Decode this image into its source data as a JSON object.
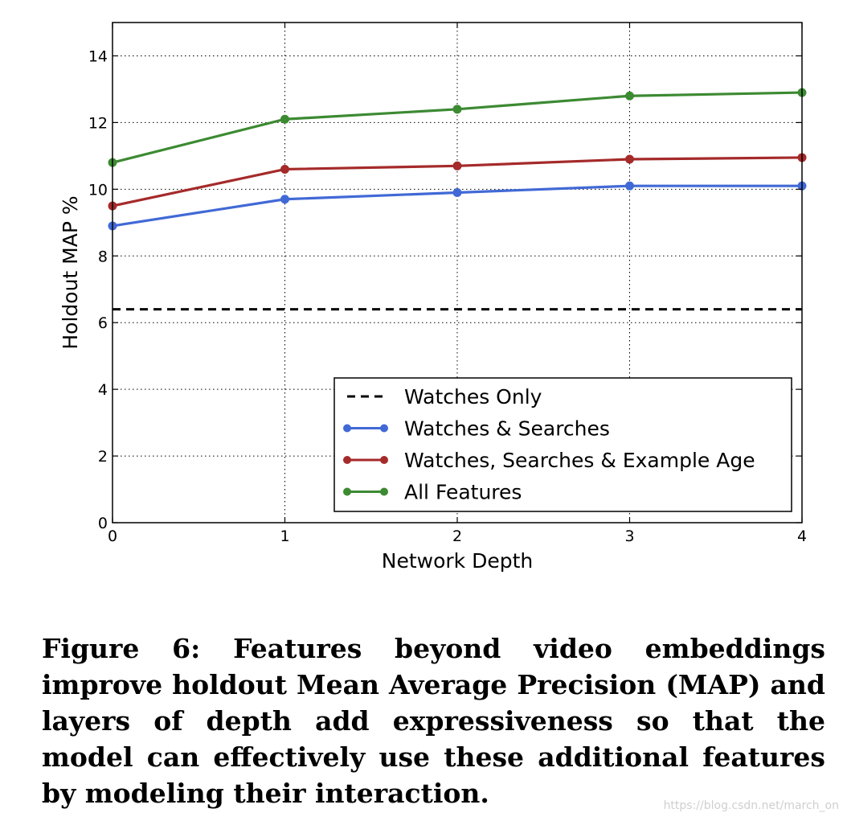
{
  "chart_data": {
    "type": "line",
    "xlabel": "Network Depth",
    "ylabel": "Holdout MAP %",
    "xlim": [
      0,
      4
    ],
    "ylim": [
      0,
      15
    ],
    "xticks": [
      0,
      1,
      2,
      3,
      4
    ],
    "yticks": [
      0,
      2,
      4,
      6,
      8,
      10,
      12,
      14
    ],
    "grid": true,
    "grid_style": "dotted",
    "legend_position": "lower-right",
    "x": [
      0,
      1,
      2,
      3,
      4
    ],
    "series": [
      {
        "name": "Watches Only",
        "style": "dashed",
        "color": "#000000",
        "values": [
          6.4,
          6.4,
          6.4,
          6.4,
          6.4
        ]
      },
      {
        "name": "Watches & Searches",
        "style": "solid-markers",
        "color": "#4169d6",
        "values": [
          8.9,
          9.7,
          9.9,
          10.1,
          10.1
        ]
      },
      {
        "name": "Watches, Searches & Example Age",
        "style": "solid-markers",
        "color": "#a52a2a",
        "values": [
          9.5,
          10.6,
          10.7,
          10.9,
          10.95
        ]
      },
      {
        "name": "All Features",
        "style": "solid-markers",
        "color": "#3c8a32",
        "values": [
          10.8,
          12.1,
          12.4,
          12.8,
          12.9
        ]
      }
    ]
  },
  "caption": "Figure 6: Features beyond video embeddings improve holdout Mean Average Precision (MAP) and layers of depth add expressiveness so that the model can effectively use these additional features by modeling their interaction.",
  "watermark": "https://blog.csdn.net/march_on"
}
